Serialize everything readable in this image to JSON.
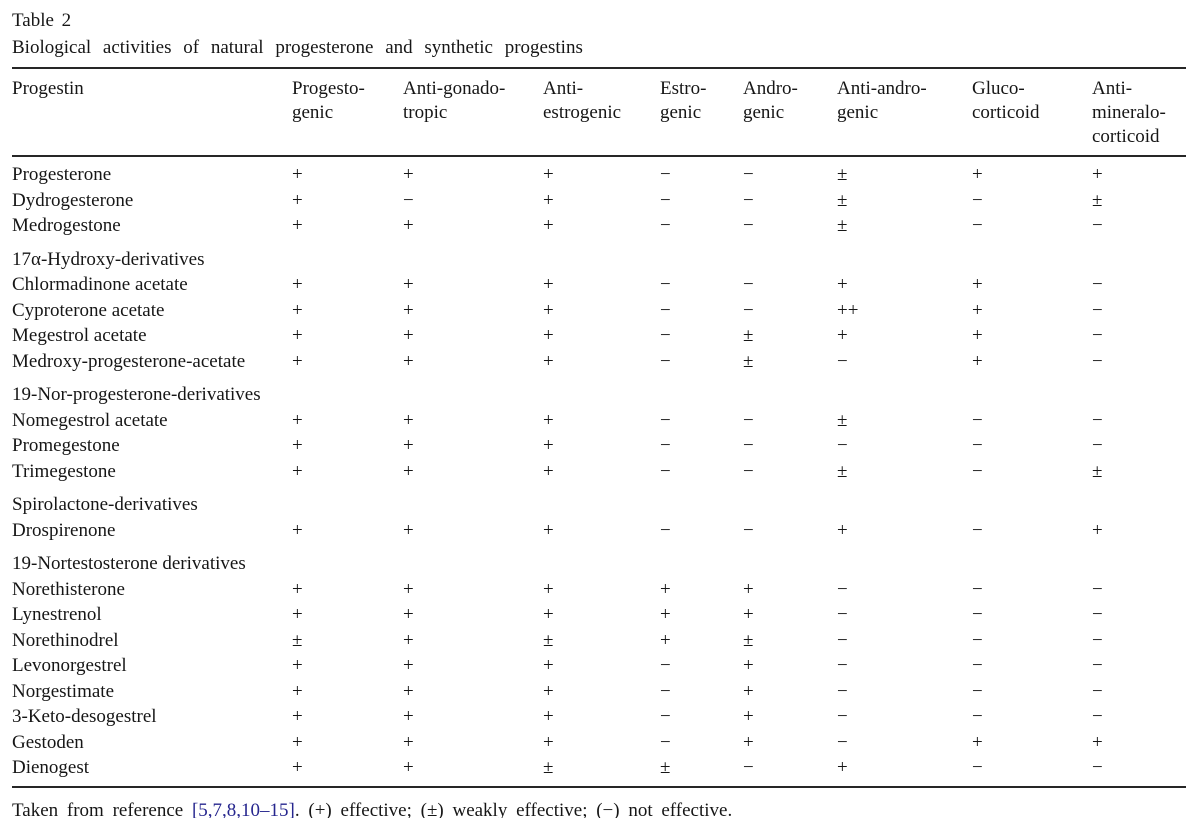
{
  "page": {
    "label": "Table 2",
    "caption": "Biological activities of natural progesterone and synthetic progestins"
  },
  "columns": [
    "Progestin",
    "Progesto-\ngenic",
    "Anti-gonado-\ntropic",
    "Anti-\nestrogenic",
    "Estro-\ngenic",
    "Andro-\ngenic",
    "Anti-andro-\ngenic",
    "Gluco-\ncorticoid",
    "Anti-\nmineralo-\ncorticoid"
  ],
  "rows": [
    {
      "name": "Progesterone",
      "values": [
        "+",
        "+",
        "+",
        "−",
        "−",
        "±",
        "+",
        "+"
      ]
    },
    {
      "name": "Dydrogesterone",
      "values": [
        "+",
        "−",
        "+",
        "−",
        "−",
        "±",
        "−",
        "±"
      ]
    },
    {
      "name": "Medrogestone",
      "values": [
        "+",
        "+",
        "+",
        "−",
        "−",
        "±",
        "−",
        "−"
      ]
    },
    {
      "section": "17α-Hydroxy-derivatives"
    },
    {
      "name": "Chlormadinone acetate",
      "values": [
        "+",
        "+",
        "+",
        "−",
        "−",
        "+",
        "+",
        "−"
      ]
    },
    {
      "name": "Cyproterone acetate",
      "values": [
        "+",
        "+",
        "+",
        "−",
        "−",
        "++",
        "+",
        "−"
      ]
    },
    {
      "name": "Megestrol acetate",
      "values": [
        "+",
        "+",
        "+",
        "−",
        "±",
        "+",
        "+",
        "−"
      ]
    },
    {
      "name": "Medroxy-progesterone-acetate",
      "values": [
        "+",
        "+",
        "+",
        "−",
        "±",
        "−",
        "+",
        "−"
      ]
    },
    {
      "section": "19-Nor-progesterone-derivatives"
    },
    {
      "name": "Nomegestrol acetate",
      "values": [
        "+",
        "+",
        "+",
        "−",
        "−",
        "±",
        "−",
        "−"
      ]
    },
    {
      "name": "Promegestone",
      "values": [
        "+",
        "+",
        "+",
        "−",
        "−",
        "−",
        "−",
        "−"
      ]
    },
    {
      "name": "Trimegestone",
      "values": [
        "+",
        "+",
        "+",
        "−",
        "−",
        "±",
        "−",
        "±"
      ]
    },
    {
      "section": "Spirolactone-derivatives"
    },
    {
      "name": "Drospirenone",
      "values": [
        "+",
        "+",
        "+",
        "−",
        "−",
        "+",
        "−",
        "+"
      ]
    },
    {
      "section": "19-Nortestosterone derivatives"
    },
    {
      "name": "Norethisterone",
      "values": [
        "+",
        "+",
        "+",
        "+",
        "+",
        "−",
        "−",
        "−"
      ]
    },
    {
      "name": "Lynestrenol",
      "values": [
        "+",
        "+",
        "+",
        "+",
        "+",
        "−",
        "−",
        "−"
      ]
    },
    {
      "name": "Norethinodrel",
      "values": [
        "±",
        "+",
        "±",
        "+",
        "±",
        "−",
        "−",
        "−"
      ]
    },
    {
      "name": "Levonorgestrel",
      "values": [
        "+",
        "+",
        "+",
        "−",
        "+",
        "−",
        "−",
        "−"
      ]
    },
    {
      "name": "Norgestimate",
      "values": [
        "+",
        "+",
        "+",
        "−",
        "+",
        "−",
        "−",
        "−"
      ]
    },
    {
      "name": "3-Keto-desogestrel",
      "values": [
        "+",
        "+",
        "+",
        "−",
        "+",
        "−",
        "−",
        "−"
      ]
    },
    {
      "name": "Gestoden",
      "values": [
        "+",
        "+",
        "+",
        "−",
        "+",
        "−",
        "+",
        "+"
      ]
    },
    {
      "name": "Dienogest",
      "values": [
        "+",
        "+",
        "±",
        "±",
        "−",
        "+",
        "−",
        "−"
      ]
    }
  ],
  "legend": {
    "prefix": "Taken from reference ",
    "reference": "[5,7,8,10–15]",
    "suffix": ". (+) effective; (±) weakly effective; (−) not effective."
  },
  "colors": {
    "text": "#161616",
    "rule": "#262626",
    "reference_link": "#26268e"
  }
}
